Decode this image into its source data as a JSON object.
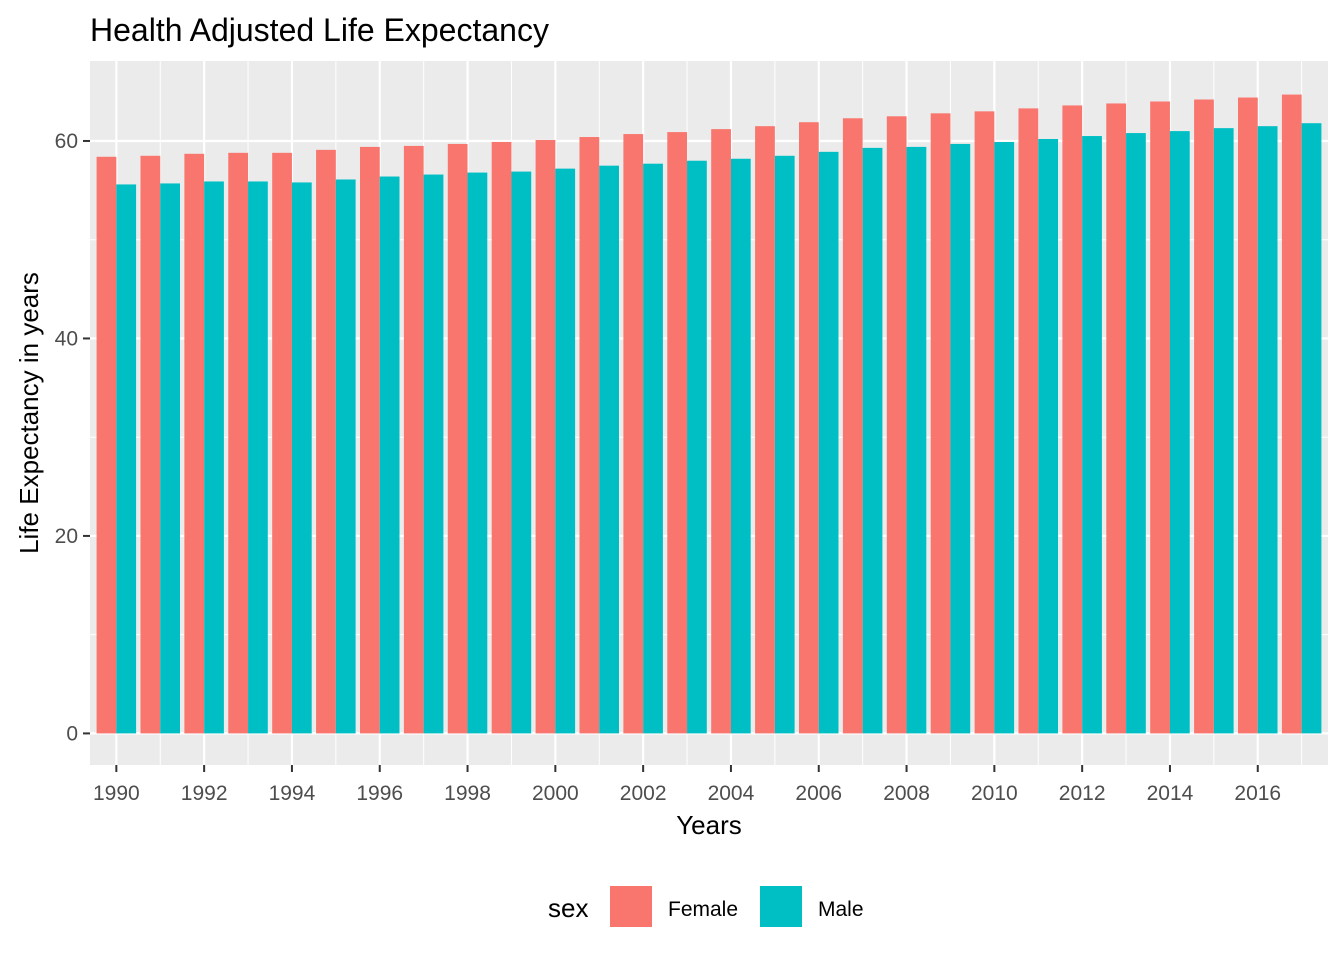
{
  "chart_data": {
    "type": "bar",
    "title": "Health Adjusted Life Expectancy",
    "xlabel": "Years",
    "ylabel": "Life Expectancy in years",
    "categories": [
      1990,
      1991,
      1992,
      1993,
      1994,
      1995,
      1996,
      1997,
      1998,
      1999,
      2000,
      2001,
      2002,
      2003,
      2004,
      2005,
      2006,
      2007,
      2008,
      2009,
      2010,
      2011,
      2012,
      2013,
      2014,
      2015,
      2016,
      2017
    ],
    "x_tick_labels": [
      "1990",
      "1992",
      "1994",
      "1996",
      "1998",
      "2000",
      "2002",
      "2004",
      "2006",
      "2008",
      "2010",
      "2012",
      "2014",
      "2016"
    ],
    "y_ticks": [
      0,
      20,
      40,
      60
    ],
    "y_tick_labels": [
      "0",
      "20",
      "40",
      "60"
    ],
    "ylim": [
      -3.2,
      68.1
    ],
    "grid": true,
    "legend": {
      "title": "sex",
      "placement": "bottom"
    },
    "series": [
      {
        "name": "Female",
        "color": "#F8766D",
        "values": [
          58.4,
          58.5,
          58.7,
          58.8,
          58.8,
          59.1,
          59.4,
          59.5,
          59.7,
          59.9,
          60.1,
          60.4,
          60.7,
          60.9,
          61.2,
          61.5,
          61.9,
          62.3,
          62.5,
          62.8,
          63.0,
          63.3,
          63.6,
          63.8,
          64.0,
          64.2,
          64.4,
          64.7
        ]
      },
      {
        "name": "Male",
        "color": "#00BFC4",
        "values": [
          55.6,
          55.7,
          55.9,
          55.9,
          55.8,
          56.1,
          56.4,
          56.6,
          56.8,
          56.9,
          57.2,
          57.5,
          57.7,
          58.0,
          58.2,
          58.5,
          58.9,
          59.3,
          59.4,
          59.7,
          59.9,
          60.2,
          60.5,
          60.8,
          61.0,
          61.3,
          61.5,
          61.8
        ]
      }
    ]
  }
}
